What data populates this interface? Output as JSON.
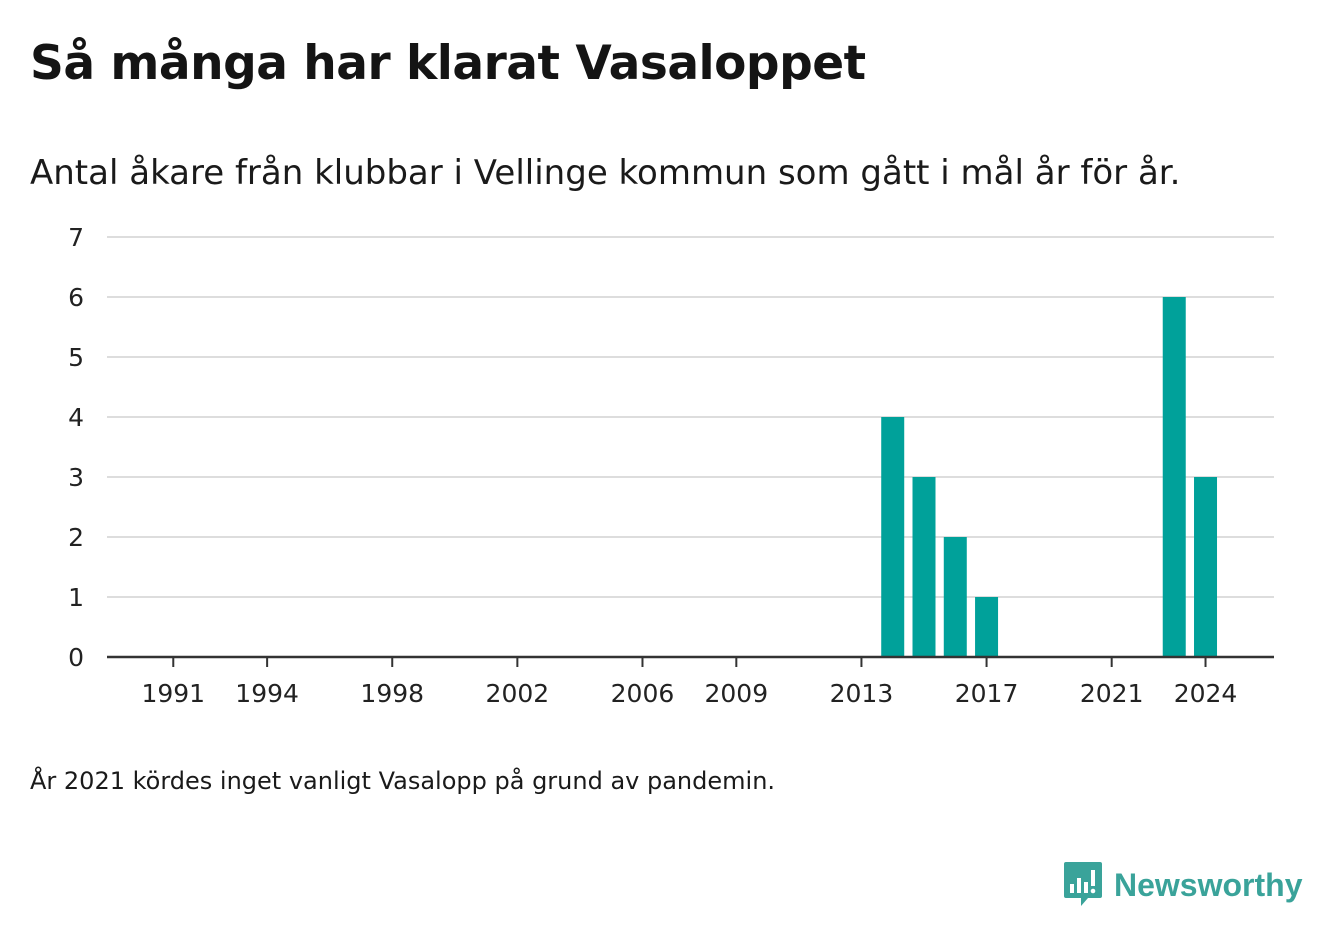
{
  "title": "Så många har klarat Vasaloppet",
  "subtitle": "Antal åkare från klubbar i Vellinge kommun som gått i mål år för år.",
  "note": "År 2021 kördes inget vanligt Vasalopp på grund av pandemin.",
  "brand": {
    "name": "Newsworthy",
    "icon": "newsworthy-logo-icon"
  },
  "colors": {
    "bar": "#00a19a",
    "grid": "#dddddd",
    "axis": "#333333"
  },
  "chart_data": {
    "type": "bar",
    "title": "Så många har klarat Vasaloppet",
    "subtitle": "Antal åkare från klubbar i Vellinge kommun som gått i mål år för år.",
    "xlabel": "",
    "ylabel": "",
    "x": [
      1990,
      1991,
      1992,
      1993,
      1994,
      1995,
      1996,
      1997,
      1998,
      1999,
      2000,
      2001,
      2002,
      2003,
      2004,
      2005,
      2006,
      2007,
      2008,
      2009,
      2010,
      2011,
      2012,
      2013,
      2014,
      2015,
      2016,
      2017,
      2018,
      2019,
      2020,
      2021,
      2022,
      2023,
      2024,
      2025
    ],
    "values": [
      0,
      0,
      0,
      0,
      0,
      0,
      0,
      0,
      0,
      0,
      0,
      0,
      0,
      0,
      0,
      0,
      0,
      0,
      0,
      0,
      0,
      0,
      0,
      0,
      4,
      3,
      2,
      1,
      0,
      0,
      0,
      0,
      0,
      6,
      3,
      0
    ],
    "xticks": [
      "1991",
      "1994",
      "1998",
      "2002",
      "2006",
      "2009",
      "2013",
      "2017",
      "2021",
      "2024"
    ],
    "yticks": [
      "0",
      "1",
      "2",
      "3",
      "4",
      "5",
      "6",
      "7"
    ],
    "ylim": [
      0,
      7
    ],
    "grid": true,
    "legend": "none"
  }
}
